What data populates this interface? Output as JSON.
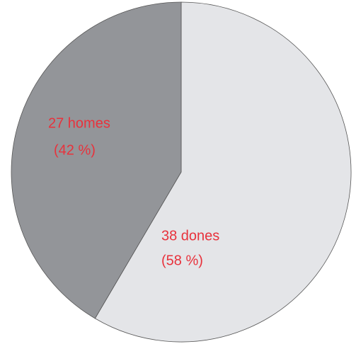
{
  "chart_data": {
    "type": "pie",
    "values": [
      38,
      27
    ],
    "value_labels": [
      "38 dones",
      "27 homes"
    ],
    "percent_labels": [
      "(58 %)",
      "(42 %)"
    ],
    "colors": [
      "#e4e5e8",
      "#939599"
    ],
    "label_color": "#e8323c"
  }
}
